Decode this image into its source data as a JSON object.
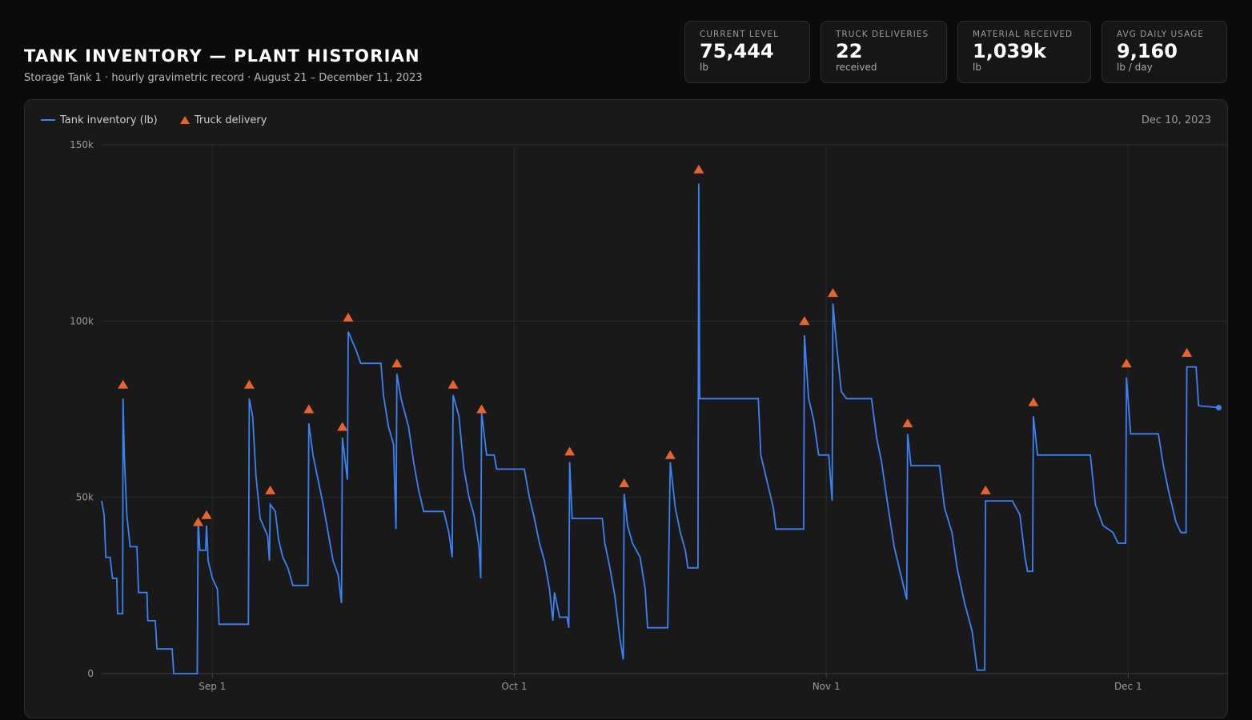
{
  "header": {
    "title": "TANK INVENTORY — PLANT HISTORIAN",
    "subtitle": "Storage Tank 1 · hourly gravimetric record · August 21 – December 11, 2023"
  },
  "kpis": [
    {
      "label": "CURRENT LEVEL",
      "value": "75,444",
      "unit": "lb"
    },
    {
      "label": "TRUCK DELIVERIES",
      "value": "22",
      "unit": "received"
    },
    {
      "label": "MATERIAL RECEIVED",
      "value": "1,039k",
      "unit": "lb"
    },
    {
      "label": "AVG DAILY USAGE",
      "value": "9,160",
      "unit": "lb / day"
    }
  ],
  "legend": {
    "inventory": "Tank inventory (lb)",
    "delivery": "Truck delivery"
  },
  "date_readout": "Dec 10, 2023",
  "colors": {
    "inventory_line": "#3b82f6",
    "delivery_marker": "#e8642c",
    "background": "#0b0b0b",
    "panel": "#191919"
  },
  "chart_data": {
    "type": "line",
    "title": "",
    "xlabel": "",
    "ylabel": "",
    "ylim": [
      0,
      150000
    ],
    "y_ticks": [
      0,
      50000,
      100000,
      150000
    ],
    "y_tick_labels": [
      "0",
      "50k",
      "100k",
      "150k"
    ],
    "x_range": [
      "2023-08-21",
      "2023-12-11"
    ],
    "x_ticks": [
      {
        "date": "2023-09-01",
        "label": "Sep 1"
      },
      {
        "date": "2023-10-01",
        "label": "Oct 1"
      },
      {
        "date": "2023-11-01",
        "label": "Nov 1"
      },
      {
        "date": "2023-12-01",
        "label": "Dec 1"
      }
    ],
    "grid": true,
    "legend_position": "top-left",
    "series": [
      {
        "name": "Tank inventory (lb)",
        "points": [
          [
            "2023-08-21 00:00",
            49000
          ],
          [
            "2023-08-21 06:00",
            45000
          ],
          [
            "2023-08-21 10:00",
            33000
          ],
          [
            "2023-08-21 20:00",
            33000
          ],
          [
            "2023-08-22 02:00",
            27000
          ],
          [
            "2023-08-22 12:00",
            27000
          ],
          [
            "2023-08-22 14:00",
            17000
          ],
          [
            "2023-08-23 02:00",
            17000
          ],
          [
            "2023-08-23 03:00",
            78000
          ],
          [
            "2023-08-23 06:00",
            62000
          ],
          [
            "2023-08-23 12:00",
            45000
          ],
          [
            "2023-08-23 20:00",
            36000
          ],
          [
            "2023-08-24 12:00",
            36000
          ],
          [
            "2023-08-24 16:00",
            23000
          ],
          [
            "2023-08-25 12:00",
            23000
          ],
          [
            "2023-08-25 14:00",
            15000
          ],
          [
            "2023-08-26 08:00",
            15000
          ],
          [
            "2023-08-26 12:00",
            7000
          ],
          [
            "2023-08-28 00:00",
            7000
          ],
          [
            "2023-08-28 04:00",
            0
          ],
          [
            "2023-08-30 12:00",
            0
          ],
          [
            "2023-08-30 14:00",
            44000
          ],
          [
            "2023-08-30 18:00",
            35000
          ],
          [
            "2023-08-31 08:00",
            35000
          ],
          [
            "2023-08-31 10:00",
            42000
          ],
          [
            "2023-08-31 14:00",
            32000
          ],
          [
            "2023-09-01 00:00",
            27000
          ],
          [
            "2023-09-01 12:00",
            24000
          ],
          [
            "2023-09-01 16:00",
            14000
          ],
          [
            "2023-09-04 14:00",
            14000
          ],
          [
            "2023-09-04 16:00",
            78000
          ],
          [
            "2023-09-05 00:00",
            73000
          ],
          [
            "2023-09-05 08:00",
            56000
          ],
          [
            "2023-09-05 18:00",
            44000
          ],
          [
            "2023-09-06 12:00",
            39000
          ],
          [
            "2023-09-06 16:00",
            32000
          ],
          [
            "2023-09-06 18:00",
            48000
          ],
          [
            "2023-09-07 06:00",
            46000
          ],
          [
            "2023-09-07 14:00",
            38000
          ],
          [
            "2023-09-08 00:00",
            33000
          ],
          [
            "2023-09-08 12:00",
            30000
          ],
          [
            "2023-09-09 00:00",
            25000
          ],
          [
            "2023-09-10 12:00",
            25000
          ],
          [
            "2023-09-10 14:00",
            71000
          ],
          [
            "2023-09-11 00:00",
            62000
          ],
          [
            "2023-09-11 12:00",
            55000
          ],
          [
            "2023-09-12 00:00",
            48000
          ],
          [
            "2023-09-12 12:00",
            40000
          ],
          [
            "2023-09-13 00:00",
            32000
          ],
          [
            "2023-09-13 12:00",
            28000
          ],
          [
            "2023-09-13 20:00",
            20000
          ],
          [
            "2023-09-13 22:00",
            67000
          ],
          [
            "2023-09-14 06:00",
            59000
          ],
          [
            "2023-09-14 10:00",
            55000
          ],
          [
            "2023-09-14 12:00",
            97000
          ],
          [
            "2023-09-15 06:00",
            92000
          ],
          [
            "2023-09-15 18:00",
            88000
          ],
          [
            "2023-09-17 18:00",
            88000
          ],
          [
            "2023-09-18 00:00",
            79000
          ],
          [
            "2023-09-18 12:00",
            70000
          ],
          [
            "2023-09-19 00:00",
            65000
          ],
          [
            "2023-09-19 06:00",
            41000
          ],
          [
            "2023-09-19 08:00",
            85000
          ],
          [
            "2023-09-19 18:00",
            78000
          ],
          [
            "2023-09-20 12:00",
            70000
          ],
          [
            "2023-09-21 00:00",
            60000
          ],
          [
            "2023-09-21 12:00",
            52000
          ],
          [
            "2023-09-22 00:00",
            46000
          ],
          [
            "2023-09-24 00:00",
            46000
          ],
          [
            "2023-09-24 12:00",
            40000
          ],
          [
            "2023-09-24 20:00",
            33000
          ],
          [
            "2023-09-24 22:00",
            79000
          ],
          [
            "2023-09-25 12:00",
            73000
          ],
          [
            "2023-09-26 00:00",
            58000
          ],
          [
            "2023-09-26 12:00",
            50000
          ],
          [
            "2023-09-27 00:00",
            45000
          ],
          [
            "2023-09-27 12:00",
            36000
          ],
          [
            "2023-09-27 16:00",
            27000
          ],
          [
            "2023-09-27 18:00",
            74000
          ],
          [
            "2023-09-28 06:00",
            62000
          ],
          [
            "2023-09-29 00:00",
            62000
          ],
          [
            "2023-09-29 06:00",
            58000
          ],
          [
            "2023-10-02 00:00",
            58000
          ],
          [
            "2023-10-02 12:00",
            50000
          ],
          [
            "2023-10-03 00:00",
            44000
          ],
          [
            "2023-10-03 12:00",
            37000
          ],
          [
            "2023-10-04 00:00",
            32000
          ],
          [
            "2023-10-04 12:00",
            24000
          ],
          [
            "2023-10-04 20:00",
            15000
          ],
          [
            "2023-10-05 00:00",
            23000
          ],
          [
            "2023-10-05 12:00",
            16000
          ],
          [
            "2023-10-06 06:00",
            16000
          ],
          [
            "2023-10-06 10:00",
            13000
          ],
          [
            "2023-10-06 12:00",
            60000
          ],
          [
            "2023-10-06 18:00",
            44000
          ],
          [
            "2023-10-09 18:00",
            44000
          ],
          [
            "2023-10-10 00:00",
            37000
          ],
          [
            "2023-10-10 12:00",
            30000
          ],
          [
            "2023-10-11 00:00",
            22000
          ],
          [
            "2023-10-11 12:00",
            10000
          ],
          [
            "2023-10-11 20:00",
            4000
          ],
          [
            "2023-10-11 22:00",
            51000
          ],
          [
            "2023-10-12 06:00",
            42000
          ],
          [
            "2023-10-12 18:00",
            37000
          ],
          [
            "2023-10-13 12:00",
            33000
          ],
          [
            "2023-10-14 00:00",
            24000
          ],
          [
            "2023-10-14 06:00",
            13000
          ],
          [
            "2023-10-16 06:00",
            13000
          ],
          [
            "2023-10-16 12:00",
            60000
          ],
          [
            "2023-10-17 00:00",
            47000
          ],
          [
            "2023-10-17 12:00",
            40000
          ],
          [
            "2023-10-18 00:00",
            35000
          ],
          [
            "2023-10-18 06:00",
            30000
          ],
          [
            "2023-10-19 06:00",
            30000
          ],
          [
            "2023-10-19 08:00",
            139000
          ],
          [
            "2023-10-19 10:00",
            78000
          ],
          [
            "2023-10-25 06:00",
            78000
          ],
          [
            "2023-10-25 12:00",
            62000
          ],
          [
            "2023-10-26 00:00",
            56000
          ],
          [
            "2023-10-26 18:00",
            47000
          ],
          [
            "2023-10-27 00:00",
            41000
          ],
          [
            "2023-10-29 18:00",
            41000
          ],
          [
            "2023-10-29 20:00",
            96000
          ],
          [
            "2023-10-30 06:00",
            78000
          ],
          [
            "2023-10-30 18:00",
            72000
          ],
          [
            "2023-10-31 06:00",
            62000
          ],
          [
            "2023-11-01 06:00",
            62000
          ],
          [
            "2023-11-01 14:00",
            49000
          ],
          [
            "2023-11-01 16:00",
            105000
          ],
          [
            "2023-11-02 00:00",
            94000
          ],
          [
            "2023-11-02 12:00",
            80000
          ],
          [
            "2023-11-03 00:00",
            78000
          ],
          [
            "2023-11-05 12:00",
            78000
          ],
          [
            "2023-11-06 00:00",
            67000
          ],
          [
            "2023-11-06 12:00",
            60000
          ],
          [
            "2023-11-07 00:00",
            50000
          ],
          [
            "2023-11-07 18:00",
            36000
          ],
          [
            "2023-11-08 12:00",
            27000
          ],
          [
            "2023-11-09 00:00",
            21000
          ],
          [
            "2023-11-09 02:00",
            68000
          ],
          [
            "2023-11-09 10:00",
            59000
          ],
          [
            "2023-11-12 06:00",
            59000
          ],
          [
            "2023-11-12 18:00",
            47000
          ],
          [
            "2023-11-13 12:00",
            40000
          ],
          [
            "2023-11-14 00:00",
            30000
          ],
          [
            "2023-11-14 18:00",
            20000
          ],
          [
            "2023-11-15 12:00",
            12000
          ],
          [
            "2023-11-16 00:00",
            1000
          ],
          [
            "2023-11-16 18:00",
            1000
          ],
          [
            "2023-11-16 20:00",
            49000
          ],
          [
            "2023-11-19 12:00",
            49000
          ],
          [
            "2023-11-20 06:00",
            45000
          ],
          [
            "2023-11-20 18:00",
            33000
          ],
          [
            "2023-11-21 00:00",
            29000
          ],
          [
            "2023-11-21 12:00",
            29000
          ],
          [
            "2023-11-21 14:00",
            73000
          ],
          [
            "2023-11-22 00:00",
            62000
          ],
          [
            "2023-11-27 06:00",
            62000
          ],
          [
            "2023-11-27 18:00",
            48000
          ],
          [
            "2023-11-28 12:00",
            42000
          ],
          [
            "2023-11-29 12:00",
            40000
          ],
          [
            "2023-11-30 00:00",
            37000
          ],
          [
            "2023-11-30 18:00",
            37000
          ],
          [
            "2023-11-30 20:00",
            84000
          ],
          [
            "2023-12-01 06:00",
            68000
          ],
          [
            "2023-12-04 00:00",
            68000
          ],
          [
            "2023-12-04 12:00",
            59000
          ],
          [
            "2023-12-05 00:00",
            52000
          ],
          [
            "2023-12-05 18:00",
            43000
          ],
          [
            "2023-12-06 06:00",
            40000
          ],
          [
            "2023-12-06 18:00",
            40000
          ],
          [
            "2023-12-06 20:00",
            87000
          ],
          [
            "2023-12-07 18:00",
            87000
          ],
          [
            "2023-12-08 00:00",
            76000
          ],
          [
            "2023-12-10 00:00",
            75444
          ]
        ]
      },
      {
        "name": "Truck delivery",
        "points": [
          [
            "2023-08-23 03:00",
            82000
          ],
          [
            "2023-08-30 14:00",
            43000
          ],
          [
            "2023-08-31 10:00",
            45000
          ],
          [
            "2023-09-04 16:00",
            82000
          ],
          [
            "2023-09-06 18:00",
            52000
          ],
          [
            "2023-09-10 14:00",
            75000
          ],
          [
            "2023-09-13 22:00",
            70000
          ],
          [
            "2023-09-14 12:00",
            101000
          ],
          [
            "2023-09-19 08:00",
            88000
          ],
          [
            "2023-09-24 22:00",
            82000
          ],
          [
            "2023-09-27 18:00",
            75000
          ],
          [
            "2023-10-06 12:00",
            63000
          ],
          [
            "2023-10-11 22:00",
            54000
          ],
          [
            "2023-10-16 12:00",
            62000
          ],
          [
            "2023-10-19 08:00",
            143000
          ],
          [
            "2023-10-29 20:00",
            100000
          ],
          [
            "2023-11-01 16:00",
            108000
          ],
          [
            "2023-11-09 02:00",
            71000
          ],
          [
            "2023-11-16 20:00",
            52000
          ],
          [
            "2023-11-21 14:00",
            77000
          ],
          [
            "2023-11-30 20:00",
            88000
          ],
          [
            "2023-12-06 20:00",
            91000
          ]
        ]
      }
    ]
  }
}
